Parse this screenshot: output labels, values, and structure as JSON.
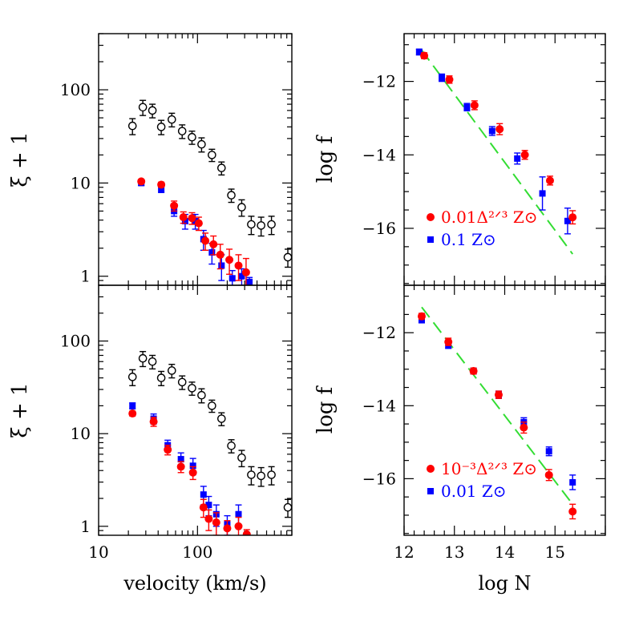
{
  "chart_data": [
    {
      "type": "scatter",
      "panel": "top-left",
      "xlabel": "",
      "ylabel": "ξ + 1",
      "xscale": "log",
      "yscale": "log",
      "xlim": [
        10,
        900
      ],
      "ylim": [
        0.8,
        400
      ],
      "yticks": [
        {
          "v": 1,
          "label": "1"
        },
        {
          "v": 10,
          "label": "10"
        },
        {
          "v": 100,
          "label": "100"
        }
      ],
      "xticks": [],
      "series": [
        {
          "name": "",
          "style": "open-circle",
          "color": "#000000",
          "x": [
            22,
            28,
            35,
            43,
            55,
            70,
            88,
            110,
            140,
            175,
            220,
            280,
            350,
            440,
            560,
            820
          ],
          "y": [
            41,
            65,
            60,
            40,
            48,
            36,
            31,
            26,
            20,
            14.5,
            7.4,
            5.5,
            3.6,
            3.5,
            3.6,
            1.6
          ],
          "err": [
            8,
            12,
            10,
            7,
            8,
            6,
            5,
            4.5,
            3,
            2.3,
            1.2,
            1.1,
            0.8,
            0.8,
            0.8,
            0.35
          ]
        },
        {
          "name": "",
          "style": "filled-square",
          "color": "#0000ff",
          "x": [
            27,
            43,
            58,
            75,
            95,
            115,
            140,
            175,
            225,
            280,
            335
          ],
          "y": [
            10,
            8.6,
            5.0,
            3.9,
            3.9,
            2.5,
            1.8,
            1.3,
            0.95,
            1.0,
            0.87
          ],
          "err": [
            0.6,
            0.7,
            0.6,
            0.7,
            0.7,
            0.6,
            0.45,
            0.4,
            0.2,
            0.2,
            0.1
          ]
        },
        {
          "name": "",
          "style": "filled-circle",
          "color": "#ff0000",
          "x": [
            27,
            43,
            58,
            72,
            88,
            103,
            120,
            145,
            170,
            210,
            260,
            310
          ],
          "y": [
            10.4,
            9.6,
            5.7,
            4.3,
            4.2,
            3.7,
            2.4,
            2.2,
            1.7,
            1.5,
            1.3,
            1.1
          ],
          "err": [
            0.5,
            0.6,
            0.7,
            0.6,
            0.6,
            0.6,
            0.5,
            0.5,
            0.5,
            0.45,
            0.4,
            0.45
          ]
        }
      ]
    },
    {
      "type": "scatter",
      "panel": "bottom-left",
      "xlabel": "velocity (km/s)",
      "ylabel": "ξ + 1",
      "xscale": "log",
      "yscale": "log",
      "xlim": [
        10,
        900
      ],
      "ylim": [
        0.8,
        400
      ],
      "yticks": [
        {
          "v": 1,
          "label": "1"
        },
        {
          "v": 10,
          "label": "10"
        },
        {
          "v": 100,
          "label": "100"
        }
      ],
      "xticks": [
        {
          "v": 10,
          "label": "10"
        },
        {
          "v": 100,
          "label": "100"
        }
      ],
      "series": [
        {
          "name": "",
          "style": "open-circle",
          "color": "#000000",
          "x": [
            22,
            28,
            35,
            43,
            55,
            70,
            88,
            110,
            140,
            175,
            220,
            280,
            350,
            440,
            560,
            820
          ],
          "y": [
            41,
            65,
            60,
            40,
            48,
            36,
            31,
            26,
            20,
            14.5,
            7.4,
            5.5,
            3.6,
            3.5,
            3.6,
            1.6
          ],
          "err": [
            8,
            12,
            10,
            7,
            8,
            6,
            5,
            4.5,
            3,
            2.3,
            1.2,
            1.1,
            0.8,
            0.8,
            0.8,
            0.35
          ]
        },
        {
          "name": "",
          "style": "filled-square",
          "color": "#0000ff",
          "x": [
            22,
            36,
            50,
            68,
            90,
            115,
            130,
            155,
            200,
            260
          ],
          "y": [
            20,
            14.5,
            7.5,
            5.3,
            4.5,
            2.2,
            1.7,
            1.35,
            1.05,
            1.35
          ],
          "err": [
            1.5,
            1.8,
            1.0,
            0.9,
            0.9,
            0.5,
            0.4,
            0.35,
            0.25,
            0.35
          ]
        },
        {
          "name": "",
          "style": "filled-circle",
          "color": "#ff0000",
          "x": [
            22,
            36,
            50,
            68,
            90,
            115,
            130,
            155,
            200,
            260,
            315
          ],
          "y": [
            16.5,
            13.5,
            6.7,
            4.4,
            3.8,
            1.6,
            1.2,
            1.1,
            0.95,
            1.0,
            0.82
          ],
          "err": [
            1.0,
            1.5,
            0.8,
            0.6,
            0.6,
            0.35,
            0.3,
            0.3,
            0.2,
            0.25,
            0.1
          ]
        }
      ]
    },
    {
      "type": "scatter",
      "panel": "top-right",
      "xlabel": "",
      "ylabel": "log f",
      "xscale": "linear",
      "yscale": "linear",
      "xlim": [
        12,
        16
      ],
      "ylim": [
        -17.55,
        -10.7
      ],
      "xticks": [],
      "yticks": [
        {
          "v": -12,
          "label": "−12"
        },
        {
          "v": -14,
          "label": "−14"
        },
        {
          "v": -16,
          "label": "−16"
        }
      ],
      "fit_line": {
        "color": "#33dd33",
        "style": "dashed",
        "x": [
          12.35,
          15.35
        ],
        "y": [
          -11.15,
          -16.7
        ]
      },
      "legend": [
        {
          "marker": "filled-circle",
          "color": "#ff0000",
          "text": "0.01Δ²ᐟ³ Z⊙"
        },
        {
          "marker": "filled-square",
          "color": "#0000ff",
          "text": "0.1 Z⊙"
        }
      ],
      "series": [
        {
          "name": "0.1 Z⊙",
          "style": "filled-square",
          "color": "#0000ff",
          "x": [
            12.3,
            12.75,
            13.25,
            13.75,
            14.25,
            14.75,
            15.25
          ],
          "y": [
            -11.2,
            -11.9,
            -12.7,
            -13.35,
            -14.1,
            -15.05,
            -15.8
          ],
          "err": [
            0.08,
            0.1,
            0.1,
            0.12,
            0.15,
            0.45,
            0.35
          ]
        },
        {
          "name": "0.01Δ²ᐟ³ Z⊙",
          "style": "filled-circle",
          "color": "#ff0000",
          "x": [
            12.4,
            12.9,
            13.4,
            13.9,
            14.4,
            14.9,
            15.35
          ],
          "y": [
            -11.3,
            -11.95,
            -12.65,
            -13.3,
            -14.0,
            -14.7,
            -15.7
          ],
          "err": [
            0.08,
            0.1,
            0.12,
            0.15,
            0.12,
            0.12,
            0.18
          ]
        }
      ]
    },
    {
      "type": "scatter",
      "panel": "bottom-right",
      "xlabel": "log N",
      "ylabel": "log f",
      "xscale": "linear",
      "yscale": "linear",
      "xlim": [
        12,
        16
      ],
      "ylim": [
        -17.55,
        -10.7
      ],
      "xticks": [
        {
          "v": 12,
          "label": "12"
        },
        {
          "v": 13,
          "label": "13"
        },
        {
          "v": 14,
          "label": "14"
        },
        {
          "v": 15,
          "label": "15"
        }
      ],
      "yticks": [
        {
          "v": -12,
          "label": "−12"
        },
        {
          "v": -14,
          "label": "−14"
        },
        {
          "v": -16,
          "label": "−16"
        }
      ],
      "fit_line": {
        "color": "#33dd33",
        "style": "dashed",
        "x": [
          12.35,
          15.35
        ],
        "y": [
          -11.3,
          -16.7
        ]
      },
      "legend": [
        {
          "marker": "filled-circle",
          "color": "#ff0000",
          "text": "10⁻³Δ²ᐟ³ Z⊙"
        },
        {
          "marker": "filled-square",
          "color": "#0000ff",
          "text": "0.01 Z⊙"
        }
      ],
      "series": [
        {
          "name": "0.01 Z⊙",
          "style": "filled-square",
          "color": "#0000ff",
          "x": [
            12.35,
            12.88,
            13.38,
            13.88,
            14.38,
            14.88,
            15.35
          ],
          "y": [
            -11.65,
            -12.35,
            -13.05,
            -13.7,
            -14.45,
            -15.25,
            -16.1
          ],
          "err": [
            0.08,
            0.08,
            0.08,
            0.1,
            0.12,
            0.12,
            0.2
          ]
        },
        {
          "name": "10⁻³Δ²ᐟ³ Z⊙",
          "style": "filled-circle",
          "color": "#ff0000",
          "x": [
            12.35,
            12.88,
            13.38,
            13.88,
            14.38,
            14.88,
            15.35
          ],
          "y": [
            -11.55,
            -12.25,
            -13.05,
            -13.7,
            -14.6,
            -15.9,
            -16.9
          ],
          "err": [
            0.08,
            0.1,
            0.08,
            0.1,
            0.15,
            0.15,
            0.2
          ]
        }
      ]
    }
  ]
}
